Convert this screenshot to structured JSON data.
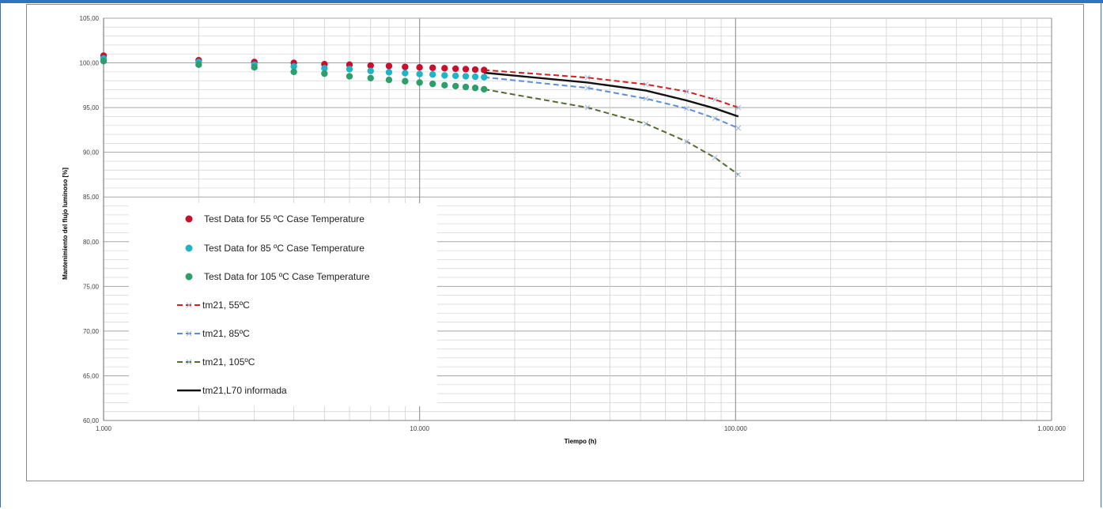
{
  "chart_data": {
    "type": "scatter",
    "title": "",
    "xlabel": "Tiempo (h)",
    "ylabel": "Mantenimiento del flujo luminoso [%]",
    "xscale": "log",
    "xlim": [
      1000,
      1000000
    ],
    "ylim": [
      60,
      105
    ],
    "grid": true,
    "legend_position": "inside-bottom-left",
    "x_tick_labels": [
      "1.000",
      "10.000",
      "100.000",
      "1.000.000"
    ],
    "y_tick_labels": [
      "60,00",
      "65,00",
      "70,00",
      "75,00",
      "80,00",
      "85,00",
      "90,00",
      "95,00",
      "100,00",
      "105,00"
    ],
    "test_x": [
      1000,
      2000,
      3000,
      4000,
      5000,
      6000,
      7000,
      8000,
      9000,
      10000,
      11000,
      12000,
      13000,
      14000,
      15000,
      16000
    ],
    "series": [
      {
        "name": "Test Data for 55 ºC Case Temperature",
        "kind": "points",
        "color": "#c8102e",
        "values": [
          100.8,
          100.3,
          100.1,
          100.0,
          99.85,
          99.8,
          99.7,
          99.65,
          99.55,
          99.5,
          99.45,
          99.4,
          99.35,
          99.3,
          99.25,
          99.2
        ]
      },
      {
        "name": "Test Data for 85 ºC Case Temperature",
        "kind": "points",
        "color": "#1fb5c9",
        "values": [
          100.5,
          100.1,
          99.8,
          99.6,
          99.4,
          99.3,
          99.1,
          98.95,
          98.85,
          98.75,
          98.7,
          98.6,
          98.55,
          98.5,
          98.45,
          98.4
        ]
      },
      {
        "name": "Test Data for 105 ºC Case Temperature",
        "kind": "points",
        "color": "#2e9e6b",
        "values": [
          100.2,
          99.8,
          99.5,
          99.0,
          98.8,
          98.5,
          98.3,
          98.1,
          97.95,
          97.8,
          97.65,
          97.5,
          97.4,
          97.3,
          97.2,
          97.05
        ]
      },
      {
        "name": "tm21, 55ºC",
        "kind": "dashed",
        "color": "#d62020",
        "x": [
          16000,
          34000,
          52000,
          70000,
          86000,
          102000
        ],
        "values": [
          99.2,
          98.35,
          97.6,
          96.8,
          95.9,
          95.0
        ]
      },
      {
        "name": "tm21, 85ºC",
        "kind": "dashed",
        "color": "#5b8fd6",
        "x": [
          16000,
          34000,
          52000,
          70000,
          86000,
          102000
        ],
        "values": [
          98.4,
          97.2,
          96.0,
          94.9,
          93.8,
          92.7
        ]
      },
      {
        "name": "tm21, 105ºC",
        "kind": "dashed",
        "color": "#556b2f",
        "x": [
          16000,
          34000,
          52000,
          70000,
          86000,
          102000
        ],
        "values": [
          97.05,
          95.0,
          93.2,
          91.2,
          89.4,
          87.5
        ]
      },
      {
        "name": "tm21,L70 informada",
        "kind": "solid",
        "color": "#111111",
        "x": [
          16000,
          34000,
          52000,
          70000,
          86000,
          102000
        ],
        "values": [
          98.9,
          97.8,
          96.9,
          95.8,
          94.9,
          94.0
        ]
      }
    ]
  }
}
